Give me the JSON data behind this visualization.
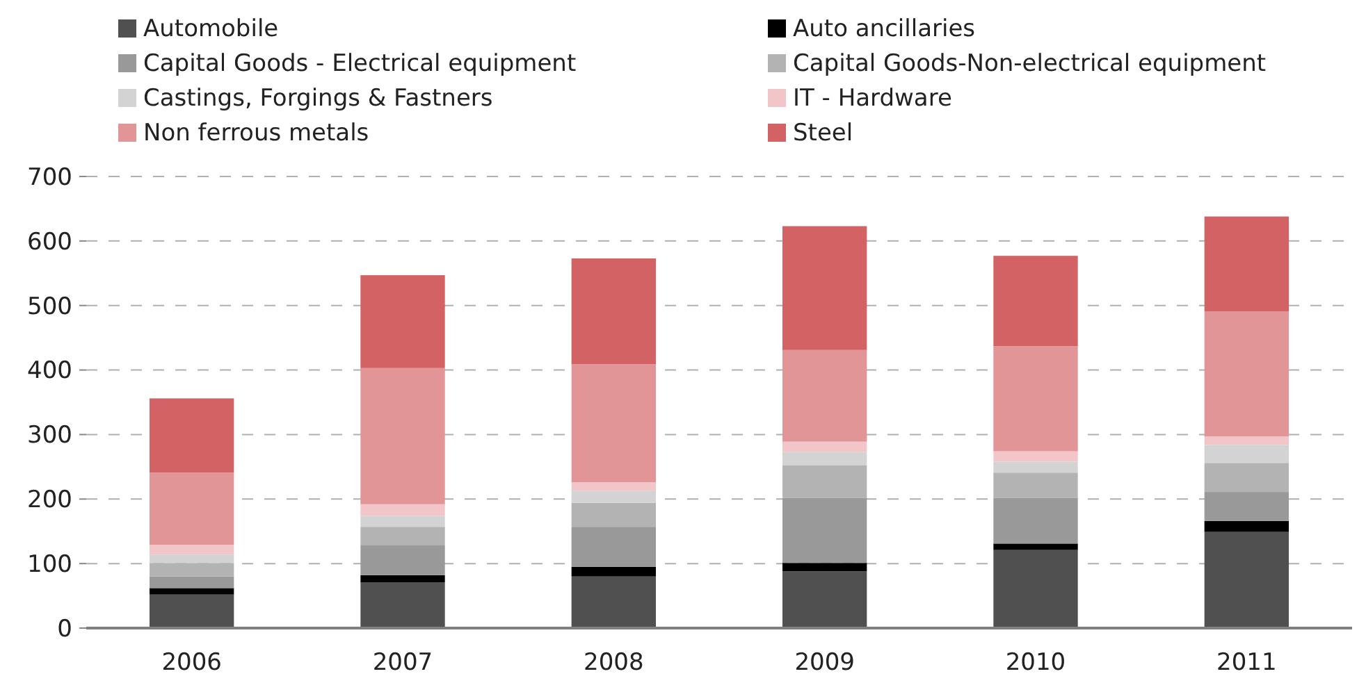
{
  "chart_data": {
    "type": "bar",
    "stacked": true,
    "categories": [
      "2006",
      "2007",
      "2008",
      "2009",
      "2010",
      "2011"
    ],
    "series": [
      {
        "name": "Automobile",
        "color": "#505050",
        "values": [
          52,
          71,
          80,
          88,
          121,
          149
        ]
      },
      {
        "name": "Auto ancillaries",
        "color": "#000000",
        "values": [
          10,
          11,
          15,
          13,
          10,
          17
        ]
      },
      {
        "name": "Capital Goods - Electrical equipment",
        "color": "#999999",
        "values": [
          18,
          47,
          62,
          101,
          71,
          45
        ]
      },
      {
        "name": "Capital Goods-Non-electrical equipment",
        "color": "#b3b3b3",
        "values": [
          21,
          28,
          37,
          50,
          39,
          45
        ]
      },
      {
        "name": "Castings, Forgings & Fastners",
        "color": "#d3d3d3",
        "values": [
          13,
          17,
          19,
          21,
          17,
          28
        ]
      },
      {
        "name": "IT - Hardware",
        "color": "#f2c6c8",
        "values": [
          15,
          18,
          13,
          16,
          16,
          13
        ]
      },
      {
        "name": "Non ferrous metals",
        "color": "#e19596",
        "values": [
          112,
          211,
          183,
          142,
          163,
          194
        ]
      },
      {
        "name": "Steel",
        "color": "#d26263",
        "values": [
          115,
          144,
          164,
          192,
          140,
          147
        ]
      }
    ],
    "ylim": [
      0,
      700
    ],
    "yticks": [
      0,
      100,
      200,
      300,
      400,
      500,
      600,
      700
    ],
    "grid": "y",
    "legend": "top"
  }
}
